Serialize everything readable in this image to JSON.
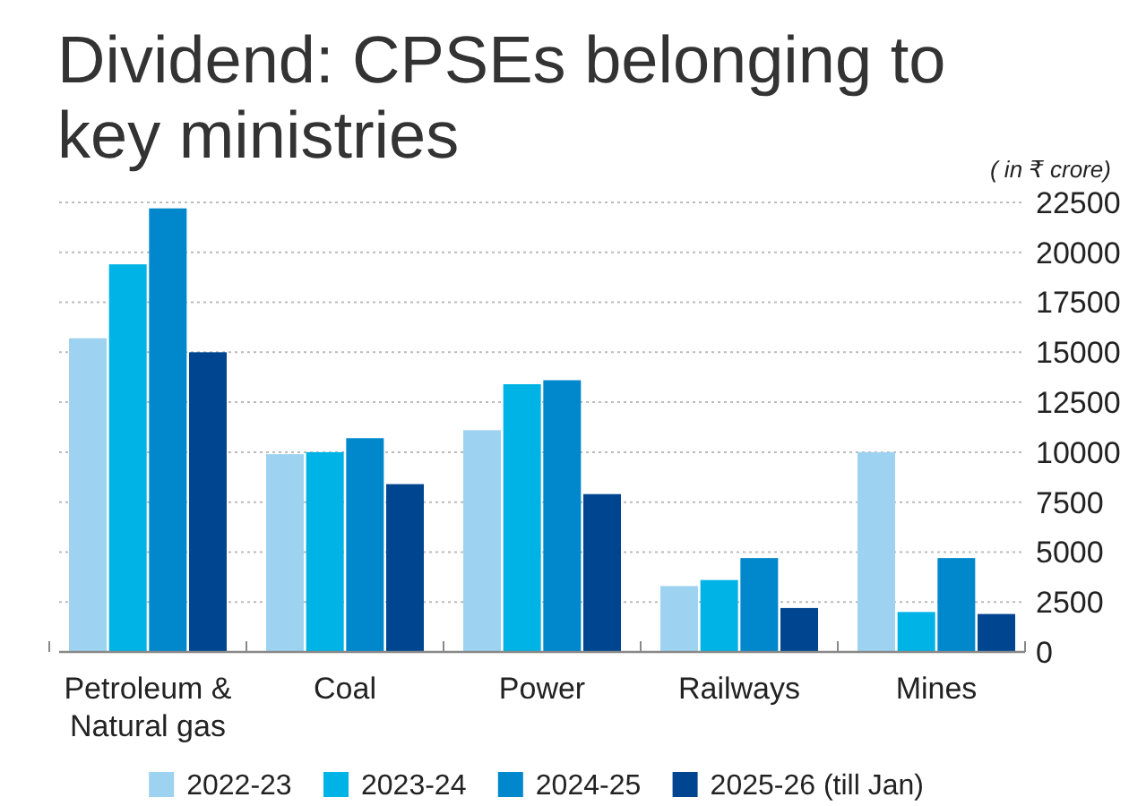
{
  "chart_data": {
    "type": "bar",
    "title": "Dividend: CPSEs belonging to key ministries",
    "ylabel": "( in ₹ crore)",
    "categories": [
      "Petroleum & Natural gas",
      "Coal",
      "Power",
      "Railways",
      "Mines"
    ],
    "series": [
      {
        "name": "2022-23",
        "color": "#9dd3f0",
        "values": [
          15700,
          9900,
          11100,
          3300,
          10000
        ]
      },
      {
        "name": "2023-24",
        "color": "#00b3e6",
        "values": [
          19400,
          10000,
          13400,
          3600,
          2000
        ]
      },
      {
        "name": "2024-25",
        "color": "#0087cc",
        "values": [
          22200,
          10700,
          13600,
          4700,
          4700
        ]
      },
      {
        "name": "2025-26 (till Jan)",
        "color": "#00458f",
        "values": [
          15000,
          8400,
          7900,
          2200,
          1900
        ]
      }
    ],
    "ylim": [
      0,
      22500
    ],
    "yticks": [
      0,
      2500,
      5000,
      7500,
      10000,
      12500,
      15000,
      17500,
      20000,
      22500
    ],
    "grid": "y",
    "legend": "bottom"
  }
}
